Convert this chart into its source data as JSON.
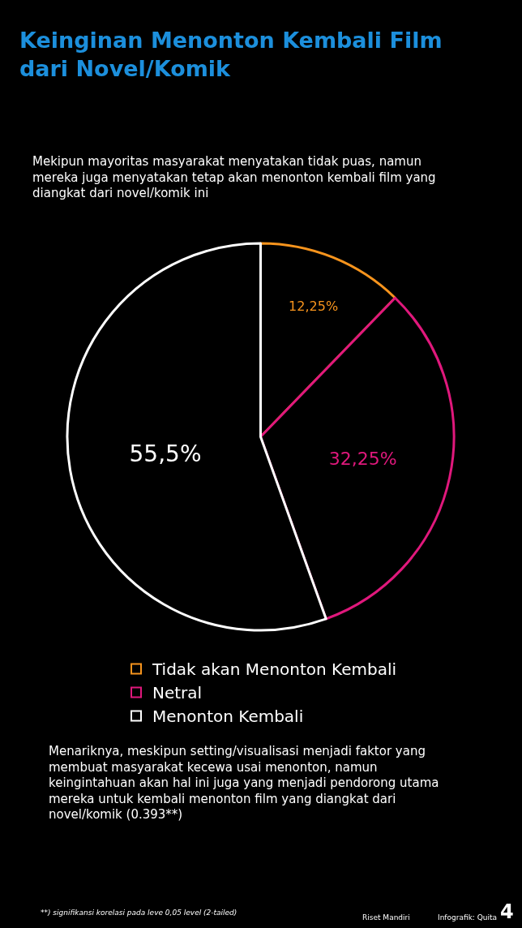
{
  "chart_data": {
    "type": "pie",
    "title": "Keinginan Menonton Kembali Film\ndari Novel/Komik",
    "subtitle": "Mekipun mayoritas masyarakat menyatakan tidak puas, namun\nmereka juga menyatakan tetap akan menonton kembali film yang\ndiangkat dari novel/komik ini",
    "categories": [
      "Tidak akan Menonton Kembali",
      "Netral",
      "Menonton Kembali"
    ],
    "values": [
      12.25,
      32.25,
      55.5
    ],
    "colors": [
      "#f7941d",
      "#e0187c",
      "#ffffff"
    ],
    "value_labels": [
      "12,25%",
      "32,25%",
      "55,5%"
    ],
    "legend": "bottom",
    "annotations": [
      "Menariknya, meskipun setting/visualisasi menjadi faktor yang\nmembuat masyarakat kecewa usai menonton, namun\nkeingintahuan akan hal ini juga yang menjadi pendorong utama\nmereka untuk kembali menonton film yang diangkat dari\nnovel/komik (0.393**)",
      "**) signifikansi korelasi pada leve 0,05 level (2-tailed)",
      "Riset Mandiri",
      "Infografik: Quita",
      "4"
    ]
  }
}
